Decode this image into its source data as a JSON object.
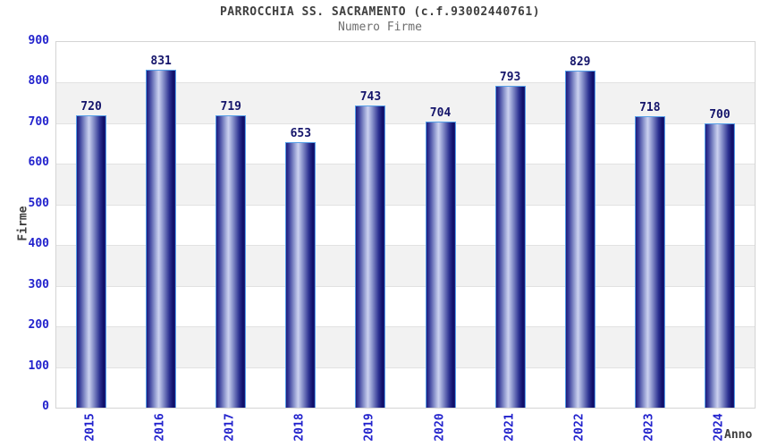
{
  "chart_data": {
    "type": "bar",
    "title": "PARROCCHIA SS. SACRAMENTO (c.f.93002440761)",
    "subtitle": "Numero Firme",
    "xlabel": "Anno",
    "ylabel": "Firme",
    "categories": [
      "2015",
      "2016",
      "2017",
      "2018",
      "2019",
      "2020",
      "2021",
      "2022",
      "2023",
      "2024"
    ],
    "values": [
      720,
      831,
      719,
      653,
      743,
      704,
      793,
      829,
      718,
      700
    ],
    "ylim": [
      0,
      900
    ],
    "ytick_step": 100,
    "yticks": [
      0,
      100,
      200,
      300,
      400,
      500,
      600,
      700,
      800,
      900
    ],
    "legend": "none",
    "grid": "horizontal alternating bands with gridlines every 100",
    "bar_labels_shown": true,
    "colors": {
      "bar_dark": "#1d1d7e",
      "bar_mid": "#8790ca",
      "bar_light": "#ccd2f0",
      "bar_border": "#56a0e8",
      "value_label": "#15156b",
      "axis_blue": "#2323cd",
      "title": "#3e3e3e",
      "subtitle": "#6e6e6e",
      "band_gray": "#f2f2f2",
      "gridline": "#e2e2e2",
      "plot_border": "#d4d4d4",
      "background": "#ffffff"
    }
  }
}
